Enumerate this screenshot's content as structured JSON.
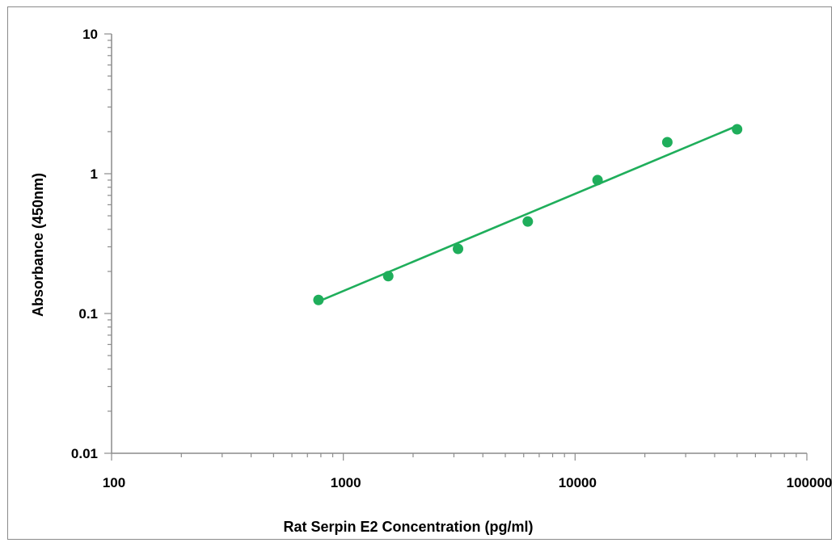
{
  "chart_data": {
    "type": "scatter",
    "xlabel": "Rat Serpin E2 Concentration (pg/ml)",
    "ylabel": "Absorbance (450nm)",
    "x_scale": "log",
    "y_scale": "log",
    "xlim": [
      100,
      100000
    ],
    "ylim": [
      0.01,
      10
    ],
    "x_ticks": [
      100,
      1000,
      10000,
      100000
    ],
    "x_tick_labels": [
      "100",
      "1000",
      "10000",
      "100000"
    ],
    "y_ticks": [
      0.01,
      0.1,
      1,
      10
    ],
    "y_tick_labels": [
      "0.01",
      "0.1",
      "1",
      "10"
    ],
    "grid": false,
    "colors": {
      "series": "#1fae5b",
      "axis": "#8c8c8c"
    },
    "series": [
      {
        "x": [
          781.25,
          1562.5,
          3125,
          6250,
          12500,
          25000,
          50000
        ],
        "y": [
          0.125,
          0.185,
          0.29,
          0.455,
          0.9,
          1.68,
          2.08
        ]
      }
    ],
    "trendline": {
      "type": "power",
      "x": [
        781.25,
        50000
      ],
      "y": [
        0.122,
        2.2
      ]
    }
  }
}
